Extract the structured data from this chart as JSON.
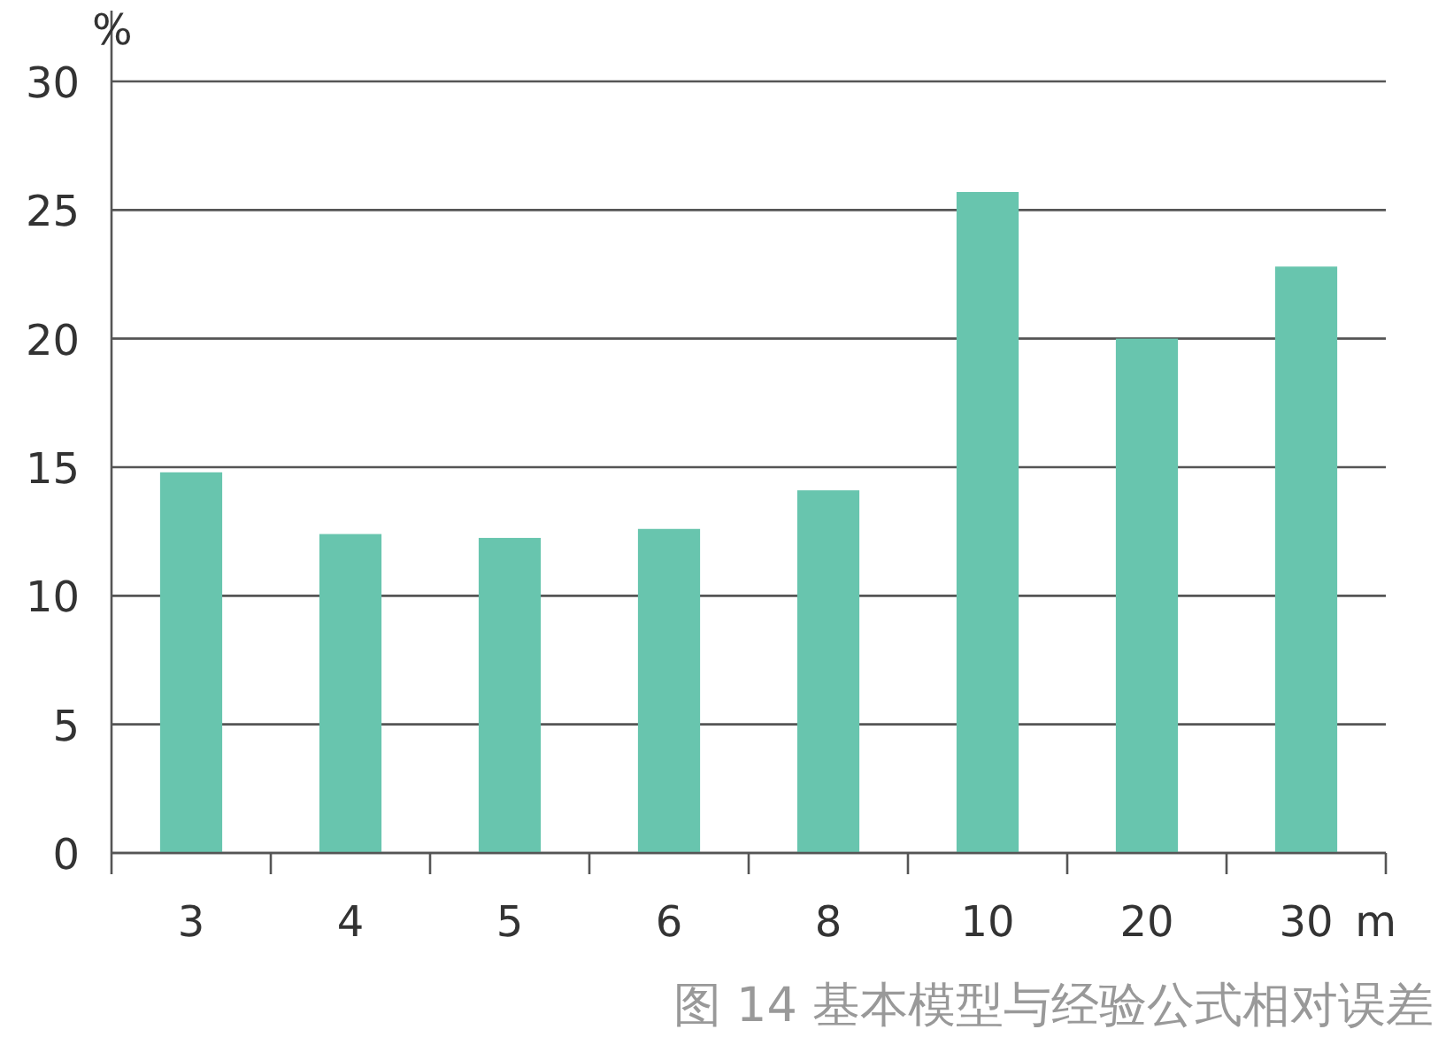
{
  "chart_data": {
    "type": "bar",
    "title": "图 14 基本模型与经验公式相对误差",
    "xlabel": "m",
    "ylabel": "%",
    "categories": [
      "3",
      "4",
      "5",
      "6",
      "8",
      "10",
      "20",
      "30"
    ],
    "values": [
      14.8,
      12.4,
      12.25,
      12.6,
      14.1,
      25.7,
      20.0,
      22.8
    ],
    "color": "#68c5ae",
    "ylim": [
      0,
      30
    ],
    "yticks": [
      0,
      5,
      10,
      15,
      20,
      25,
      30
    ],
    "grid": "y"
  }
}
